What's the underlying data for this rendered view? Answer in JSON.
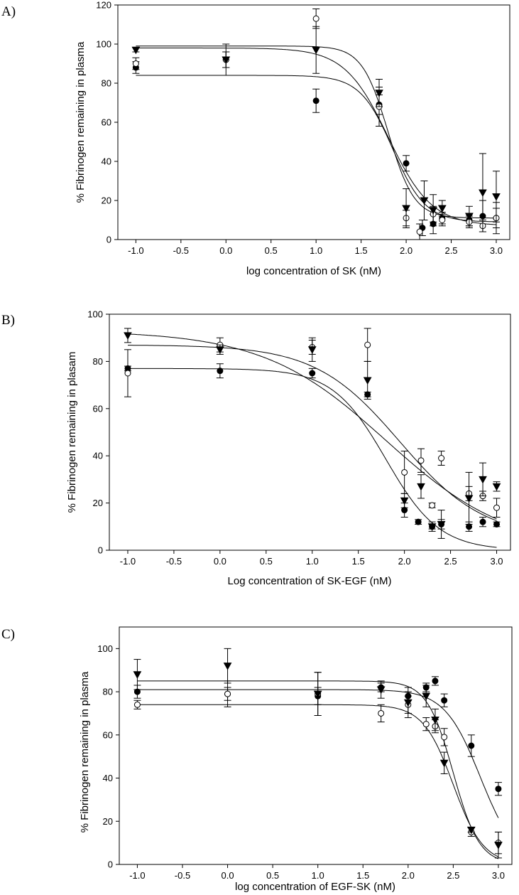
{
  "chart_data": [
    {
      "type": "scatter",
      "panel_label": "A)",
      "xlabel": "log concentration of SK (nM)",
      "ylabel": "% Fibrinogen remaining in plasma",
      "xlim": [
        -1.2,
        3.15
      ],
      "ylim": [
        0,
        120
      ],
      "xticks": [
        -1.0,
        -0.5,
        0.0,
        0.5,
        1.0,
        1.5,
        2.0,
        2.5,
        3.0
      ],
      "xtick_labels": [
        "-1.0",
        "-0.5",
        "0.0",
        "0.5",
        "1.0",
        "1.5",
        "2.0",
        "2.5",
        "3.0"
      ],
      "yticks": [
        0,
        20,
        40,
        60,
        80,
        100,
        120
      ],
      "ytick_labels": [
        "0",
        "20",
        "40",
        "60",
        "80",
        "100",
        "120"
      ],
      "series": [
        {
          "name": "filled circle",
          "marker": "filled-circle",
          "x": [
            -1.0,
            0.0,
            1.0,
            1.7,
            2.0,
            2.18,
            2.3,
            2.4,
            2.7,
            2.85,
            3.0
          ],
          "y": [
            88,
            92,
            71,
            69,
            39,
            6,
            8,
            11,
            10,
            12,
            11
          ],
          "err": [
            3,
            4,
            6,
            5,
            4,
            4,
            5,
            3,
            3,
            8,
            8
          ],
          "fit": {
            "top": 84,
            "bottom": 9,
            "logec50": 1.85,
            "hill": 2.4
          }
        },
        {
          "name": "open circle",
          "marker": "open-circle",
          "x": [
            -1.0,
            0.0,
            1.0,
            1.7,
            2.0,
            2.15,
            2.3,
            2.4,
            2.7,
            2.85,
            3.0
          ],
          "y": [
            90,
            92,
            113,
            68,
            11,
            4,
            13,
            10,
            9,
            7,
            11
          ],
          "err": [
            3,
            4,
            5,
            10,
            4,
            4,
            4,
            3,
            3,
            3,
            5
          ],
          "fit": {
            "top": 98,
            "bottom": 7,
            "logec50": 1.8,
            "hill": 1.8
          }
        },
        {
          "name": "filled triangle",
          "marker": "filled-triangle",
          "x": [
            -1.0,
            0.0,
            1.0,
            1.7,
            2.0,
            2.2,
            2.3,
            2.4,
            2.7,
            2.85,
            3.0
          ],
          "y": [
            97,
            92,
            97,
            75,
            16,
            20,
            15,
            16,
            12,
            24,
            22
          ],
          "err": [
            1,
            8,
            12,
            7,
            10,
            10,
            8,
            4,
            5,
            20,
            13
          ],
          "fit": {
            "top": 99,
            "bottom": 11,
            "logec50": 1.8,
            "hill": 3.0
          }
        }
      ]
    },
    {
      "type": "scatter",
      "panel_label": "B)",
      "xlabel": "Log concentration of SK-EGF (nM)",
      "ylabel": "% Fibrinogen remaining in plasam",
      "xlim": [
        -1.2,
        3.15
      ],
      "ylim": [
        0,
        100
      ],
      "xticks": [
        -1.0,
        -0.5,
        0.0,
        0.5,
        1.0,
        1.5,
        2.0,
        2.5,
        3.0
      ],
      "xtick_labels": [
        "-1.0",
        "-0.5",
        "0.0",
        "0.5",
        "1.0",
        "1.5",
        "2.0",
        "2.5",
        "3.0"
      ],
      "yticks": [
        0,
        20,
        40,
        60,
        80,
        100
      ],
      "ytick_labels": [
        "0",
        "20",
        "40",
        "60",
        "80",
        "100"
      ],
      "series": [
        {
          "name": "filled circle",
          "marker": "filled-circle",
          "x": [
            -1.0,
            0.0,
            1.0,
            1.6,
            2.0,
            2.15,
            2.3,
            2.4,
            2.7,
            2.85,
            3.0
          ],
          "y": [
            77,
            76,
            75,
            66,
            17,
            12,
            10,
            11,
            10,
            12,
            11
          ],
          "err": [
            1,
            3,
            2,
            1,
            3,
            1,
            1,
            2,
            2,
            2,
            1
          ],
          "fit": {
            "top": 77,
            "bottom": 0,
            "logec50": 1.8,
            "hill": 1.5
          }
        },
        {
          "name": "open circle",
          "marker": "open-circle",
          "x": [
            -1.0,
            0.0,
            1.0,
            1.6,
            2.0,
            2.18,
            2.3,
            2.4,
            2.7,
            2.85,
            3.0
          ],
          "y": [
            75,
            87,
            86,
            87,
            33,
            38,
            19,
            39,
            24,
            23,
            18
          ],
          "err": [
            10,
            3,
            3,
            7,
            9,
            5,
            1,
            3,
            3,
            2,
            4
          ],
          "fit": {
            "top": 87,
            "bottom": 5,
            "logec50": 1.95,
            "hill": 0.95
          }
        },
        {
          "name": "filled triangle",
          "marker": "filled-triangle",
          "x": [
            -1.0,
            0.0,
            1.0,
            1.6,
            2.0,
            2.18,
            2.3,
            2.4,
            2.7,
            2.85,
            3.0
          ],
          "y": [
            91,
            85,
            85,
            72,
            21,
            27,
            10,
            11,
            22,
            30,
            27
          ],
          "err": [
            3,
            2,
            5,
            8,
            3,
            5,
            2,
            6,
            11,
            7,
            2
          ],
          "fit": {
            "top": 93,
            "bottom": 0,
            "logec50": 1.8,
            "hill": 0.65
          }
        }
      ]
    },
    {
      "type": "scatter",
      "panel_label": "C)",
      "xlabel": "log concentration of EGF-SK (nM)",
      "ylabel": "% Fibrinogen remaining in plasma",
      "xlim": [
        -1.2,
        3.15
      ],
      "ylim": [
        0,
        110
      ],
      "xticks": [
        -1.0,
        -0.5,
        0.0,
        0.5,
        1.0,
        1.5,
        2.0,
        2.5,
        3.0
      ],
      "xtick_labels": [
        "-1.0",
        "-0.5",
        "0.0",
        "0.5",
        "1.0",
        "1.5",
        "2.0",
        "2.5",
        "3.0"
      ],
      "yticks": [
        0,
        20,
        40,
        60,
        80,
        100
      ],
      "ytick_labels": [
        "0",
        "20",
        "40",
        "60",
        "80",
        "100"
      ],
      "series": [
        {
          "name": "filled circle",
          "marker": "filled-circle",
          "x": [
            -1.0,
            0.0,
            1.0,
            1.7,
            2.0,
            2.2,
            2.3,
            2.4,
            2.7,
            3.0
          ],
          "y": [
            80,
            79,
            78,
            82,
            78,
            82,
            85,
            76,
            55,
            35
          ],
          "err": [
            3,
            3,
            4,
            2,
            2,
            2,
            2,
            3,
            5,
            3
          ],
          "fit": {
            "top": 81,
            "bottom": 0,
            "logec50": 2.8,
            "hill": 2.2
          }
        },
        {
          "name": "open circle",
          "marker": "open-circle",
          "x": [
            -1.0,
            0.0,
            1.0,
            1.7,
            2.0,
            2.2,
            2.3,
            2.4,
            2.7,
            3.0
          ],
          "y": [
            74,
            79,
            79,
            70,
            74,
            65,
            64,
            59,
            15,
            10
          ],
          "err": [
            2,
            6,
            10,
            4,
            4,
            3,
            3,
            4,
            2,
            5
          ],
          "fit": {
            "top": 74,
            "bottom": 0,
            "logec50": 2.5,
            "hill": 2.6
          }
        },
        {
          "name": "filled triangle",
          "marker": "filled-triangle",
          "x": [
            -1.0,
            0.0,
            1.0,
            1.7,
            2.0,
            2.2,
            2.3,
            2.4,
            2.7,
            3.0
          ],
          "y": [
            88,
            92,
            79,
            81,
            75,
            78,
            67,
            47,
            16,
            9
          ],
          "err": [
            7,
            8,
            10,
            4,
            7,
            5,
            5,
            5,
            1,
            6
          ],
          "fit": {
            "top": 85,
            "bottom": 0,
            "logec50": 2.5,
            "hill": 3.0
          }
        }
      ]
    }
  ]
}
